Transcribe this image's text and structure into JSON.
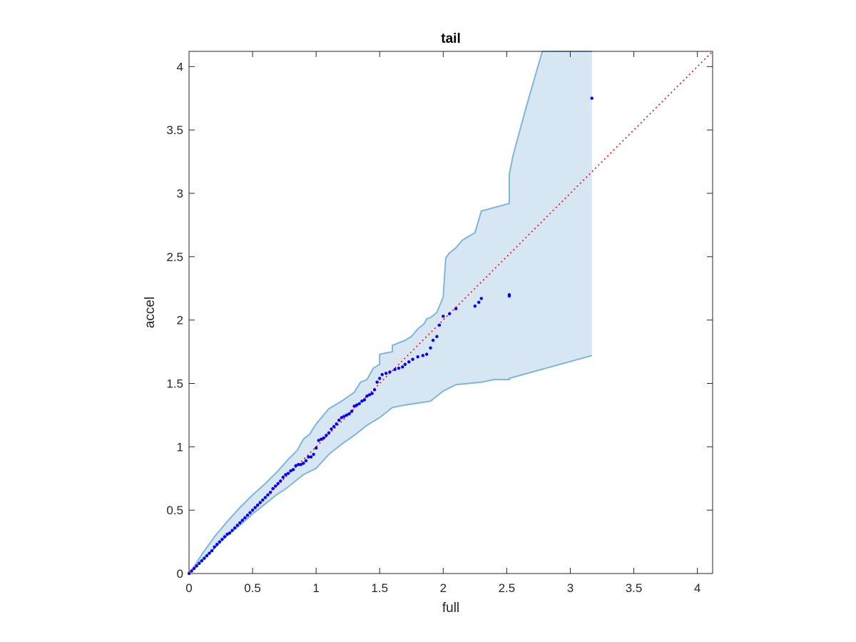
{
  "chart_data": {
    "type": "scatter",
    "title": "tail",
    "xlabel": "full",
    "ylabel": "accel",
    "xlim": [
      0,
      4.12
    ],
    "ylim": [
      0,
      4.12
    ],
    "xticks": [
      0,
      0.5,
      1,
      1.5,
      2,
      2.5,
      3,
      3.5,
      4
    ],
    "yticks": [
      0,
      0.5,
      1,
      1.5,
      2,
      2.5,
      3,
      3.5,
      4
    ],
    "xtick_labels": [
      "0",
      "0.5",
      "1",
      "1.5",
      "2",
      "2.5",
      "3",
      "3.5",
      "4"
    ],
    "ytick_labels": [
      "0",
      "0.5",
      "1",
      "1.5",
      "2",
      "2.5",
      "3",
      "3.5",
      "4"
    ],
    "grid": false,
    "reference_line": {
      "x": [
        0,
        4.12
      ],
      "y": [
        0,
        4.12
      ],
      "style": "dotted",
      "color": "#ff0000"
    },
    "band": {
      "fill_color": "#d6e7f3",
      "edge_color": "#7fb6d8",
      "upper": {
        "x": [
          0,
          0.05,
          0.1,
          0.2,
          0.3,
          0.4,
          0.5,
          0.6,
          0.7,
          0.78,
          0.8,
          0.85,
          0.9,
          0.95,
          1.0,
          1.1,
          1.2,
          1.3,
          1.35,
          1.4,
          1.45,
          1.5,
          1.5,
          1.55,
          1.6,
          1.6,
          1.7,
          1.75,
          1.8,
          1.85,
          1.87,
          1.9,
          1.95,
          2.0,
          2.02,
          2.05,
          2.1,
          2.15,
          2.25,
          2.3,
          2.52,
          2.52,
          2.55,
          2.65,
          2.78,
          3.17
        ],
        "y": [
          0,
          0.07,
          0.15,
          0.29,
          0.41,
          0.52,
          0.62,
          0.71,
          0.81,
          0.9,
          0.92,
          0.97,
          1.06,
          1.1,
          1.18,
          1.3,
          1.36,
          1.43,
          1.51,
          1.53,
          1.62,
          1.65,
          1.73,
          1.74,
          1.75,
          1.8,
          1.84,
          1.87,
          1.93,
          1.97,
          2.01,
          2.02,
          2.06,
          2.18,
          2.49,
          2.53,
          2.57,
          2.63,
          2.69,
          2.86,
          2.92,
          3.15,
          3.3,
          3.67,
          4.12,
          4.12
        ]
      },
      "lower": {
        "x": [
          0,
          0.1,
          0.2,
          0.3,
          0.4,
          0.5,
          0.6,
          0.7,
          0.75,
          0.8,
          0.9,
          1.0,
          1.1,
          1.2,
          1.3,
          1.4,
          1.5,
          1.6,
          1.7,
          1.9,
          2.0,
          2.1,
          2.2,
          2.3,
          2.4,
          2.52,
          2.52,
          3.17
        ],
        "y": [
          0,
          0.11,
          0.2,
          0.3,
          0.38,
          0.47,
          0.55,
          0.63,
          0.66,
          0.7,
          0.78,
          0.83,
          0.94,
          1.02,
          1.09,
          1.17,
          1.23,
          1.31,
          1.33,
          1.36,
          1.44,
          1.49,
          1.5,
          1.51,
          1.53,
          1.53,
          1.54,
          1.72
        ]
      }
    },
    "series": [
      {
        "color": "#0000ff",
        "x": [
          0.0,
          0.02,
          0.04,
          0.06,
          0.08,
          0.1,
          0.12,
          0.14,
          0.16,
          0.18,
          0.2,
          0.22,
          0.24,
          0.26,
          0.28,
          0.3,
          0.32,
          0.34,
          0.36,
          0.38,
          0.4,
          0.42,
          0.44,
          0.46,
          0.48,
          0.5,
          0.52,
          0.54,
          0.56,
          0.58,
          0.6,
          0.62,
          0.64,
          0.66,
          0.68,
          0.7,
          0.72,
          0.74,
          0.76,
          0.78,
          0.8,
          0.82,
          0.84,
          0.86,
          0.88,
          0.9,
          0.92,
          0.94,
          0.96,
          0.98,
          1.0,
          1.02,
          1.04,
          1.06,
          1.08,
          1.1,
          1.12,
          1.14,
          1.16,
          1.18,
          1.2,
          1.22,
          1.24,
          1.26,
          1.28,
          1.3,
          1.32,
          1.34,
          1.36,
          1.38,
          1.4,
          1.42,
          1.44,
          1.46,
          1.48,
          1.5,
          1.52,
          1.55,
          1.58,
          1.62,
          1.65,
          1.68,
          1.7,
          1.73,
          1.76,
          1.8,
          1.84,
          1.87,
          1.9,
          1.92,
          1.95,
          1.97,
          2.0,
          2.05,
          2.1,
          2.25,
          2.28,
          2.3,
          2.52,
          2.52,
          3.17
        ],
        "y": [
          0.0,
          0.02,
          0.04,
          0.06,
          0.08,
          0.1,
          0.12,
          0.14,
          0.16,
          0.18,
          0.21,
          0.23,
          0.25,
          0.27,
          0.29,
          0.31,
          0.32,
          0.34,
          0.36,
          0.38,
          0.4,
          0.42,
          0.44,
          0.46,
          0.48,
          0.5,
          0.52,
          0.54,
          0.56,
          0.58,
          0.6,
          0.62,
          0.64,
          0.67,
          0.69,
          0.71,
          0.73,
          0.76,
          0.78,
          0.79,
          0.81,
          0.82,
          0.85,
          0.86,
          0.86,
          0.87,
          0.89,
          0.92,
          0.92,
          0.94,
          0.99,
          1.05,
          1.06,
          1.07,
          1.09,
          1.11,
          1.14,
          1.16,
          1.18,
          1.21,
          1.23,
          1.24,
          1.25,
          1.26,
          1.28,
          1.32,
          1.33,
          1.34,
          1.36,
          1.37,
          1.4,
          1.41,
          1.42,
          1.45,
          1.51,
          1.54,
          1.57,
          1.58,
          1.59,
          1.61,
          1.62,
          1.63,
          1.65,
          1.67,
          1.69,
          1.71,
          1.72,
          1.73,
          1.78,
          1.84,
          1.87,
          1.96,
          2.03,
          2.05,
          2.09,
          2.11,
          2.14,
          2.17,
          2.19,
          2.2,
          3.75
        ]
      }
    ]
  }
}
